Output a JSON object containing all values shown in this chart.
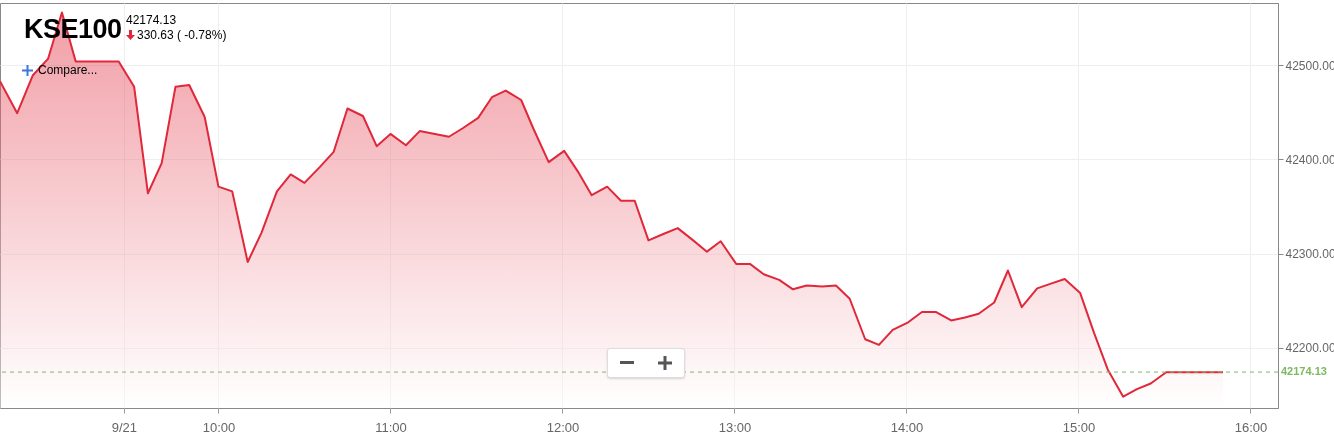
{
  "chart_data": {
    "type": "area",
    "title": "KSE100",
    "subtitle": "42174.13",
    "annotations": [
      "330.63 ( -0.78%)",
      "Compare..."
    ],
    "x": [
      8.73,
      8.83,
      8.92,
      9.01,
      9.09,
      9.17,
      9.42,
      9.51,
      9.59,
      9.67,
      9.75,
      9.83,
      9.92,
      10.0,
      10.08,
      10.17,
      10.25,
      10.34,
      10.42,
      10.5,
      10.59,
      10.67,
      10.75,
      10.84,
      10.92,
      11.0,
      11.09,
      11.17,
      11.34,
      11.42,
      11.51,
      11.59,
      11.67,
      11.76,
      11.83,
      11.92,
      12.01,
      12.09,
      12.17,
      12.26,
      12.34,
      12.42,
      12.5,
      12.59,
      12.67,
      12.76,
      12.84,
      12.92,
      13.01,
      13.09,
      13.17,
      13.26,
      13.34,
      13.42,
      13.51,
      13.59,
      13.67,
      13.76,
      13.84,
      13.92,
      14.01,
      14.09,
      14.17,
      14.26,
      14.34,
      14.42,
      14.51,
      14.59,
      14.67,
      14.76,
      14.84,
      14.92,
      15.01,
      15.09,
      15.17,
      15.26,
      15.34,
      15.42,
      15.51,
      15.84
    ],
    "series": [
      {
        "color": "#e0283a",
        "values": [
          42483,
          42449,
          42489,
          42507,
          42556,
          42504,
          42504,
          42477,
          42364,
          42396,
          42477,
          42479,
          42445,
          42371,
          42366,
          42291,
          42322,
          42366,
          42384,
          42375,
          42392,
          42408,
          42454,
          42446,
          42414,
          42427,
          42415,
          42430,
          42424,
          42433,
          42444,
          42466,
          42473,
          42463,
          42433,
          42397,
          42409,
          42387,
          42362,
          42371,
          42356,
          42356,
          42314,
          42321,
          42327,
          42314,
          42302,
          42313,
          42289,
          42289,
          42278,
          42272,
          42262,
          42266,
          42265,
          42266,
          42252,
          42209,
          42203,
          42219,
          42227,
          42238,
          42238,
          42229,
          42232,
          42236,
          42248,
          42282,
          42243,
          42263,
          42268,
          42273,
          42258,
          42216,
          42177,
          42148,
          42156,
          42162,
          42174,
          42174
        ]
      }
    ],
    "xlim": [
      8.73,
      16.16
    ],
    "ylim": [
      42136,
      42566
    ],
    "xticks": [
      {
        "value": 9.45,
        "label": "9/21"
      },
      {
        "value": 10,
        "label": "10:00"
      },
      {
        "value": 11,
        "label": "11:00"
      },
      {
        "value": 12,
        "label": "12:00"
      },
      {
        "value": 13,
        "label": "13:00"
      },
      {
        "value": 14,
        "label": "14:00"
      },
      {
        "value": 15,
        "label": "15:00"
      },
      {
        "value": 16,
        "label": "16:00"
      }
    ],
    "yticks": [
      {
        "value": 42200,
        "label": "42200.00"
      },
      {
        "value": 42300,
        "label": "42300.00"
      },
      {
        "value": 42400,
        "label": "42400.00"
      },
      {
        "value": 42500,
        "label": "42500.00"
      }
    ],
    "ref_lines": [
      {
        "axis": "y",
        "value": 42174.13,
        "label": "42174.13",
        "color": "#7cb960",
        "line_style": "dashed"
      }
    ],
    "grid": true
  }
}
